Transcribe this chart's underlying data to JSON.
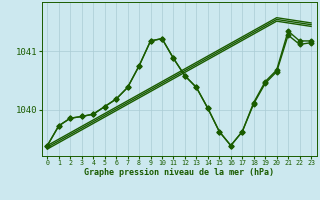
{
  "xlabel": "Graphe pression niveau de la mer (hPa)",
  "x_ticks": [
    0,
    1,
    2,
    3,
    4,
    5,
    6,
    7,
    8,
    9,
    10,
    11,
    12,
    13,
    14,
    15,
    16,
    17,
    18,
    19,
    20,
    21,
    22,
    23
  ],
  "ylim": [
    1039.2,
    1041.85
  ],
  "yticks": [
    1040,
    1041
  ],
  "background_color": "#cce8ef",
  "grid_color": "#aaccd4",
  "line_color": "#1a5c00",
  "series": {
    "main": [
      1039.38,
      1039.72,
      1039.85,
      1039.88,
      1039.92,
      1040.05,
      1040.18,
      1040.38,
      1040.75,
      1041.18,
      1041.22,
      1040.88,
      1040.58,
      1040.38,
      1040.02,
      1039.62,
      1039.38,
      1039.62,
      1040.1,
      1040.45,
      1040.65,
      1041.28,
      1041.12,
      1041.15
    ],
    "line2": [
      1039.38,
      1039.72,
      1039.85,
      1039.88,
      1039.92,
      1040.05,
      1040.18,
      1040.38,
      1040.75,
      1041.18,
      1041.22,
      1040.88,
      1040.58,
      1040.38,
      1040.02,
      1039.62,
      1039.38,
      1039.62,
      1040.12,
      1040.48,
      1040.68,
      1041.35,
      1041.18,
      1041.18
    ],
    "trend1": [
      1039.38,
      1039.49,
      1039.6,
      1039.71,
      1039.82,
      1039.93,
      1040.04,
      1040.15,
      1040.26,
      1040.37,
      1040.48,
      1040.59,
      1040.7,
      1040.81,
      1040.92,
      1041.03,
      1041.14,
      1041.25,
      1041.36,
      1041.47,
      1041.58,
      1041.55,
      1041.52,
      1041.49
    ],
    "trend2": [
      1039.35,
      1039.46,
      1039.57,
      1039.68,
      1039.79,
      1039.9,
      1040.01,
      1040.12,
      1040.23,
      1040.34,
      1040.45,
      1040.56,
      1040.67,
      1040.78,
      1040.89,
      1041.0,
      1041.11,
      1041.22,
      1041.33,
      1041.44,
      1041.55,
      1041.52,
      1041.49,
      1041.46
    ],
    "trend3": [
      1039.32,
      1039.43,
      1039.54,
      1039.65,
      1039.76,
      1039.87,
      1039.98,
      1040.09,
      1040.2,
      1040.31,
      1040.42,
      1040.53,
      1040.64,
      1040.75,
      1040.86,
      1040.97,
      1041.08,
      1041.19,
      1041.3,
      1041.41,
      1041.52,
      1041.49,
      1041.46,
      1041.43
    ]
  },
  "marker": "D",
  "marker_size": 2.5,
  "line_width": 1.0
}
